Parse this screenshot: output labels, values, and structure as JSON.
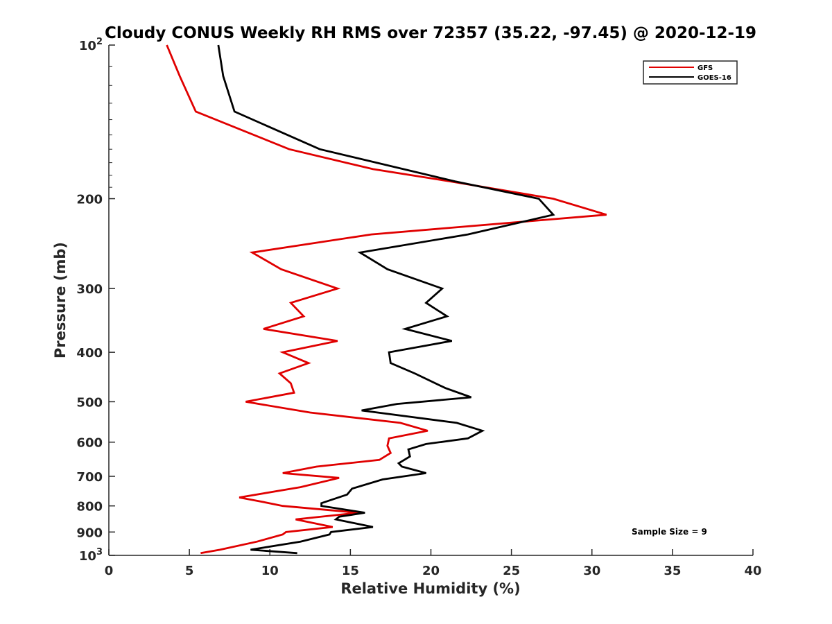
{
  "chart_data": {
    "type": "line",
    "title": "Cloudy CONUS Weekly RH RMS over 72357 (35.22, -97.45) @ 2020-12-19",
    "xlabel": "Relative Humidity (%)",
    "ylabel": "Pressure (mb)",
    "xlim": [
      0,
      40
    ],
    "ylim": [
      100,
      1000
    ],
    "y_scale": "log",
    "y_reversed": true,
    "grid": false,
    "legend_position": "top-right",
    "x_ticks": [
      0,
      5,
      10,
      15,
      20,
      25,
      30,
      35,
      40
    ],
    "y_ticks": [
      {
        "value": 100,
        "label": "10",
        "sup": "2"
      },
      {
        "value": 200,
        "label": "200"
      },
      {
        "value": 300,
        "label": "300"
      },
      {
        "value": 400,
        "label": "400"
      },
      {
        "value": 500,
        "label": "500"
      },
      {
        "value": 600,
        "label": "600"
      },
      {
        "value": 700,
        "label": "700"
      },
      {
        "value": 800,
        "label": "800"
      },
      {
        "value": 900,
        "label": "900"
      },
      {
        "value": 1000,
        "label": "10",
        "sup": "3"
      }
    ],
    "annotation": "Sample Size = 9",
    "series": [
      {
        "name": "GFS",
        "color": "#e00000",
        "points": [
          [
            3.6,
            100
          ],
          [
            4.4,
            115
          ],
          [
            5.4,
            135
          ],
          [
            11.2,
            160
          ],
          [
            16.4,
            175
          ],
          [
            21.2,
            185
          ],
          [
            27.6,
            200
          ],
          [
            30.9,
            215
          ],
          [
            16.3,
            235
          ],
          [
            8.9,
            255
          ],
          [
            10.7,
            275
          ],
          [
            14.2,
            300
          ],
          [
            11.3,
            320
          ],
          [
            12.1,
            340
          ],
          [
            9.6,
            360
          ],
          [
            14.2,
            380
          ],
          [
            10.8,
            400
          ],
          [
            12.4,
            420
          ],
          [
            10.6,
            440
          ],
          [
            11.3,
            460
          ],
          [
            11.5,
            480
          ],
          [
            8.5,
            500
          ],
          [
            12.5,
            525
          ],
          [
            18.1,
            550
          ],
          [
            19.8,
            570
          ],
          [
            17.4,
            590
          ],
          [
            17.3,
            610
          ],
          [
            17.5,
            630
          ],
          [
            16.8,
            650
          ],
          [
            12.9,
            670
          ],
          [
            10.8,
            690
          ],
          [
            14.3,
            705
          ],
          [
            11.9,
            735
          ],
          [
            8.1,
            770
          ],
          [
            9.5,
            785
          ],
          [
            10.8,
            800
          ],
          [
            15.5,
            825
          ],
          [
            11.6,
            850
          ],
          [
            13.9,
            880
          ],
          [
            11.0,
            900
          ],
          [
            10.8,
            910
          ],
          [
            9.2,
            940
          ],
          [
            6.9,
            975
          ],
          [
            5.7,
            990
          ]
        ]
      },
      {
        "name": "GOES-16",
        "color": "#000000",
        "points": [
          [
            6.8,
            100
          ],
          [
            7.1,
            115
          ],
          [
            7.8,
            135
          ],
          [
            13.1,
            160
          ],
          [
            21.5,
            185
          ],
          [
            26.7,
            200
          ],
          [
            27.6,
            215
          ],
          [
            22.3,
            235
          ],
          [
            15.6,
            255
          ],
          [
            17.3,
            275
          ],
          [
            20.7,
            300
          ],
          [
            19.7,
            320
          ],
          [
            21.0,
            340
          ],
          [
            18.4,
            360
          ],
          [
            21.3,
            380
          ],
          [
            17.4,
            400
          ],
          [
            17.5,
            420
          ],
          [
            19.0,
            440
          ],
          [
            20.9,
            470
          ],
          [
            22.5,
            490
          ],
          [
            17.9,
            505
          ],
          [
            15.7,
            520
          ],
          [
            21.6,
            550
          ],
          [
            23.2,
            570
          ],
          [
            22.3,
            590
          ],
          [
            19.7,
            605
          ],
          [
            18.6,
            620
          ],
          [
            18.7,
            640
          ],
          [
            18.0,
            660
          ],
          [
            18.2,
            670
          ],
          [
            19.7,
            690
          ],
          [
            17.0,
            710
          ],
          [
            15.1,
            740
          ],
          [
            14.8,
            760
          ],
          [
            13.2,
            790
          ],
          [
            13.2,
            800
          ],
          [
            15.9,
            825
          ],
          [
            14.3,
            840
          ],
          [
            14.1,
            850
          ],
          [
            16.4,
            880
          ],
          [
            13.8,
            900
          ],
          [
            13.7,
            910
          ],
          [
            11.9,
            940
          ],
          [
            8.8,
            975
          ],
          [
            11.7,
            990
          ]
        ]
      }
    ]
  }
}
